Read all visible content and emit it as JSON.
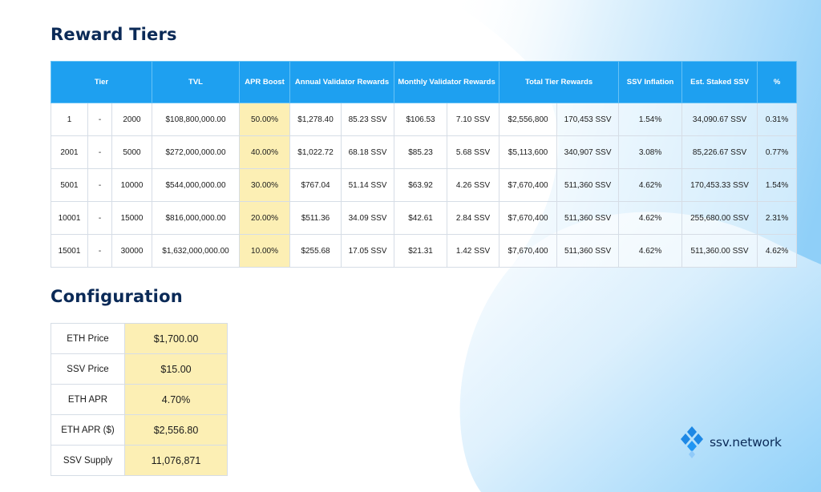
{
  "sections": {
    "rewards_title": "Reward Tiers",
    "config_title": "Configuration"
  },
  "tiers_table": {
    "headers": {
      "tier": "Tier",
      "tvl": "TVL",
      "apr_boost": "APR Boost",
      "annual": "Annual Validator Rewards",
      "monthly": "Monthly Validator Rewards",
      "total": "Total Tier Rewards",
      "inflation": "SSV Inflation",
      "staked": "Est. Staked SSV",
      "pct": "%"
    },
    "rows": [
      {
        "from": "1",
        "dash": "-",
        "to": "2000",
        "tvl": "$108,800,000.00",
        "boost": "50.00%",
        "annual_usd": "$1,278.40",
        "annual_ssv": "85.23 SSV",
        "monthly_usd": "$106.53",
        "monthly_ssv": "7.10 SSV",
        "total_usd": "$2,556,800",
        "total_ssv": "170,453 SSV",
        "inflation": "1.54%",
        "staked": "34,090.67 SSV",
        "pct": "0.31%"
      },
      {
        "from": "2001",
        "dash": "-",
        "to": "5000",
        "tvl": "$272,000,000.00",
        "boost": "40.00%",
        "annual_usd": "$1,022.72",
        "annual_ssv": "68.18 SSV",
        "monthly_usd": "$85.23",
        "monthly_ssv": "5.68 SSV",
        "total_usd": "$5,113,600",
        "total_ssv": "340,907 SSV",
        "inflation": "3.08%",
        "staked": "85,226.67 SSV",
        "pct": "0.77%"
      },
      {
        "from": "5001",
        "dash": "-",
        "to": "10000",
        "tvl": "$544,000,000.00",
        "boost": "30.00%",
        "annual_usd": "$767.04",
        "annual_ssv": "51.14 SSV",
        "monthly_usd": "$63.92",
        "monthly_ssv": "4.26 SSV",
        "total_usd": "$7,670,400",
        "total_ssv": "511,360 SSV",
        "inflation": "4.62%",
        "staked": "170,453.33 SSV",
        "pct": "1.54%"
      },
      {
        "from": "10001",
        "dash": "-",
        "to": "15000",
        "tvl": "$816,000,000.00",
        "boost": "20.00%",
        "annual_usd": "$511.36",
        "annual_ssv": "34.09 SSV",
        "monthly_usd": "$42.61",
        "monthly_ssv": "2.84 SSV",
        "total_usd": "$7,670,400",
        "total_ssv": "511,360 SSV",
        "inflation": "4.62%",
        "staked": "255,680.00 SSV",
        "pct": "2.31%"
      },
      {
        "from": "15001",
        "dash": "-",
        "to": "30000",
        "tvl": "$1,632,000,000.00",
        "boost": "10.00%",
        "annual_usd": "$255.68",
        "annual_ssv": "17.05 SSV",
        "monthly_usd": "$21.31",
        "monthly_ssv": "1.42 SSV",
        "total_usd": "$7,670,400",
        "total_ssv": "511,360 SSV",
        "inflation": "4.62%",
        "staked": "511,360.00 SSV",
        "pct": "4.62%"
      }
    ]
  },
  "config": [
    {
      "label": "ETH Price",
      "value": "$1,700.00"
    },
    {
      "label": "SSV Price",
      "value": "$15.00"
    },
    {
      "label": "ETH APR",
      "value": "4.70%"
    },
    {
      "label": "ETH APR ($)",
      "value": "$2,556.80"
    },
    {
      "label": "SSV Supply",
      "value": "11,076,871"
    }
  ],
  "logo": {
    "text": "ssv.network",
    "icon": "ssv-diamond-logo-icon"
  },
  "colors": {
    "header_blue": "#1ea0f0",
    "title_navy": "#0b2a57",
    "highlight_yellow": "#fcefb4",
    "background_blue": "#8fcff8"
  }
}
